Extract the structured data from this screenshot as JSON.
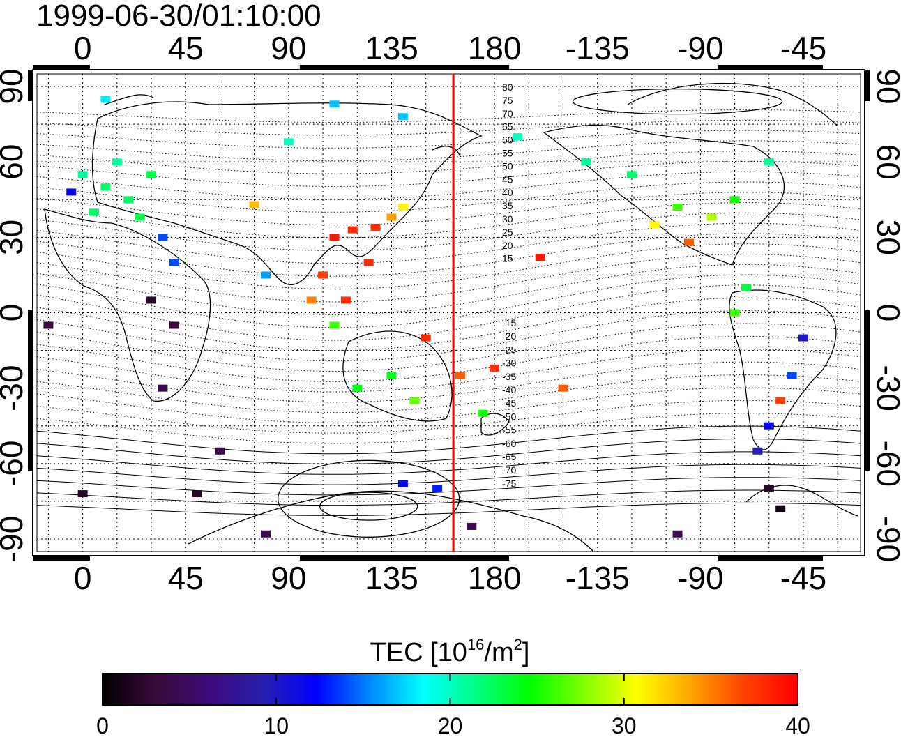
{
  "timestamp": "1999-06-30/01:10:00",
  "colorbar": {
    "title_main": "TEC  [10",
    "title_sup1": "16",
    "title_mid": "/m",
    "title_sup2": "2",
    "title_end": "]",
    "min": 0,
    "max": 40,
    "ticks": [
      "0",
      "10",
      "20",
      "30",
      "40"
    ],
    "colors": [
      "#000000",
      "#3a0a3a",
      "#3b0a7a",
      "#2a1fb0",
      "#0000ff",
      "#0088ff",
      "#00ffff",
      "#00ff80",
      "#00ff00",
      "#80ff00",
      "#ffff00",
      "#ffa500",
      "#ff4000",
      "#ff0000"
    ]
  },
  "chart_data": {
    "type": "heatmap",
    "title": "1999-06-30/01:10:00",
    "xlabel": "",
    "ylabel": "",
    "x_ticks_longitude": [
      "0",
      "45",
      "90",
      "135",
      "180",
      "-135",
      "-90",
      "-45"
    ],
    "y_ticks_latitude": [
      "90",
      "60",
      "30",
      "0",
      "-30",
      "-60",
      "-90"
    ],
    "magnetic_latitude_labels_north": [
      "80",
      "75",
      "70",
      "65",
      "60",
      "55",
      "50",
      "45",
      "40",
      "35",
      "30",
      "25",
      "20",
      "15"
    ],
    "magnetic_latitude_labels_south": [
      "-15",
      "-20",
      "-25",
      "-30",
      "-35",
      "-40",
      "-45",
      "-50",
      "-55",
      "-60",
      "-65",
      "-70",
      "-75"
    ],
    "xlim": [
      -20,
      340
    ],
    "ylim": [
      -95,
      95
    ],
    "grid": true,
    "midnight_meridian_longitude": 162,
    "value_range": [
      0,
      40
    ],
    "points": [
      {
        "lon": 0,
        "lat": 55,
        "tec": 21
      },
      {
        "lon": 10,
        "lat": 50,
        "tec": 22
      },
      {
        "lon": -5,
        "lat": 48,
        "tec": 12
      },
      {
        "lon": 15,
        "lat": 60,
        "tec": 21
      },
      {
        "lon": 20,
        "lat": 45,
        "tec": 22
      },
      {
        "lon": 30,
        "lat": 55,
        "tec": 23
      },
      {
        "lon": 5,
        "lat": 40,
        "tec": 22
      },
      {
        "lon": 25,
        "lat": 38,
        "tec": 23
      },
      {
        "lon": 35,
        "lat": 30,
        "tec": 14
      },
      {
        "lon": 40,
        "lat": 20,
        "tec": 14
      },
      {
        "lon": 80,
        "lat": 15,
        "tec": 16
      },
      {
        "lon": 75,
        "lat": 43,
        "tec": 33
      },
      {
        "lon": 118,
        "lat": 33,
        "tec": 38
      },
      {
        "lon": 128,
        "lat": 34,
        "tec": 38
      },
      {
        "lon": 135,
        "lat": 38,
        "tec": 34
      },
      {
        "lon": 140,
        "lat": 42,
        "tec": 31
      },
      {
        "lon": 125,
        "lat": 20,
        "tec": 38
      },
      {
        "lon": 110,
        "lat": 30,
        "tec": 39
      },
      {
        "lon": 105,
        "lat": 15,
        "tec": 37
      },
      {
        "lon": 115,
        "lat": 5,
        "tec": 38
      },
      {
        "lon": 100,
        "lat": 5,
        "tec": 35
      },
      {
        "lon": 110,
        "lat": -5,
        "tec": 26
      },
      {
        "lon": 150,
        "lat": -10,
        "tec": 38
      },
      {
        "lon": 135,
        "lat": -25,
        "tec": 24
      },
      {
        "lon": 145,
        "lat": -35,
        "tec": 27
      },
      {
        "lon": 120,
        "lat": -30,
        "tec": 24
      },
      {
        "lon": 175,
        "lat": -40,
        "tec": 25
      },
      {
        "lon": 180,
        "lat": -22,
        "tec": 38
      },
      {
        "lon": 165,
        "lat": -25,
        "tec": 36
      },
      {
        "lon": -160,
        "lat": 22,
        "tec": 39
      },
      {
        "lon": -150,
        "lat": -30,
        "tec": 36
      },
      {
        "lon": -100,
        "lat": 42,
        "tec": 26
      },
      {
        "lon": -85,
        "lat": 38,
        "tec": 29
      },
      {
        "lon": -110,
        "lat": 35,
        "tec": 31
      },
      {
        "lon": -95,
        "lat": 28,
        "tec": 36
      },
      {
        "lon": -120,
        "lat": 55,
        "tec": 22
      },
      {
        "lon": -140,
        "lat": 60,
        "tec": 21
      },
      {
        "lon": -75,
        "lat": 45,
        "tec": 25
      },
      {
        "lon": -60,
        "lat": 60,
        "tec": 21
      },
      {
        "lon": -70,
        "lat": 10,
        "tec": 23
      },
      {
        "lon": -75,
        "lat": 0,
        "tec": 26
      },
      {
        "lon": -45,
        "lat": -10,
        "tec": 10
      },
      {
        "lon": -50,
        "lat": -25,
        "tec": 14
      },
      {
        "lon": -55,
        "lat": -35,
        "tec": 37
      },
      {
        "lon": -60,
        "lat": -45,
        "tec": 12
      },
      {
        "lon": -65,
        "lat": -55,
        "tec": 9
      },
      {
        "lon": -60,
        "lat": -70,
        "tec": 2
      },
      {
        "lon": -55,
        "lat": -78,
        "tec": 1
      },
      {
        "lon": 30,
        "lat": 5,
        "tec": 2
      },
      {
        "lon": 40,
        "lat": -5,
        "tec": 3
      },
      {
        "lon": 35,
        "lat": -30,
        "tec": 4
      },
      {
        "lon": -15,
        "lat": -5,
        "tec": 3
      },
      {
        "lon": 60,
        "lat": -55,
        "tec": 4
      },
      {
        "lon": 0,
        "lat": -72,
        "tec": 2
      },
      {
        "lon": 50,
        "lat": -72,
        "tec": 2
      },
      {
        "lon": 140,
        "lat": -68,
        "tec": 12
      },
      {
        "lon": 155,
        "lat": -70,
        "tec": 13
      },
      {
        "lon": 170,
        "lat": -85,
        "tec": 4
      },
      {
        "lon": 80,
        "lat": -88,
        "tec": 4
      },
      {
        "lon": -100,
        "lat": -88,
        "tec": 4
      },
      {
        "lon": 110,
        "lat": 83,
        "tec": 17
      },
      {
        "lon": 140,
        "lat": 78,
        "tec": 17
      },
      {
        "lon": 10,
        "lat": 85,
        "tec": 18
      },
      {
        "lon": 90,
        "lat": 68,
        "tec": 20
      },
      {
        "lon": -170,
        "lat": 70,
        "tec": 20
      }
    ]
  }
}
